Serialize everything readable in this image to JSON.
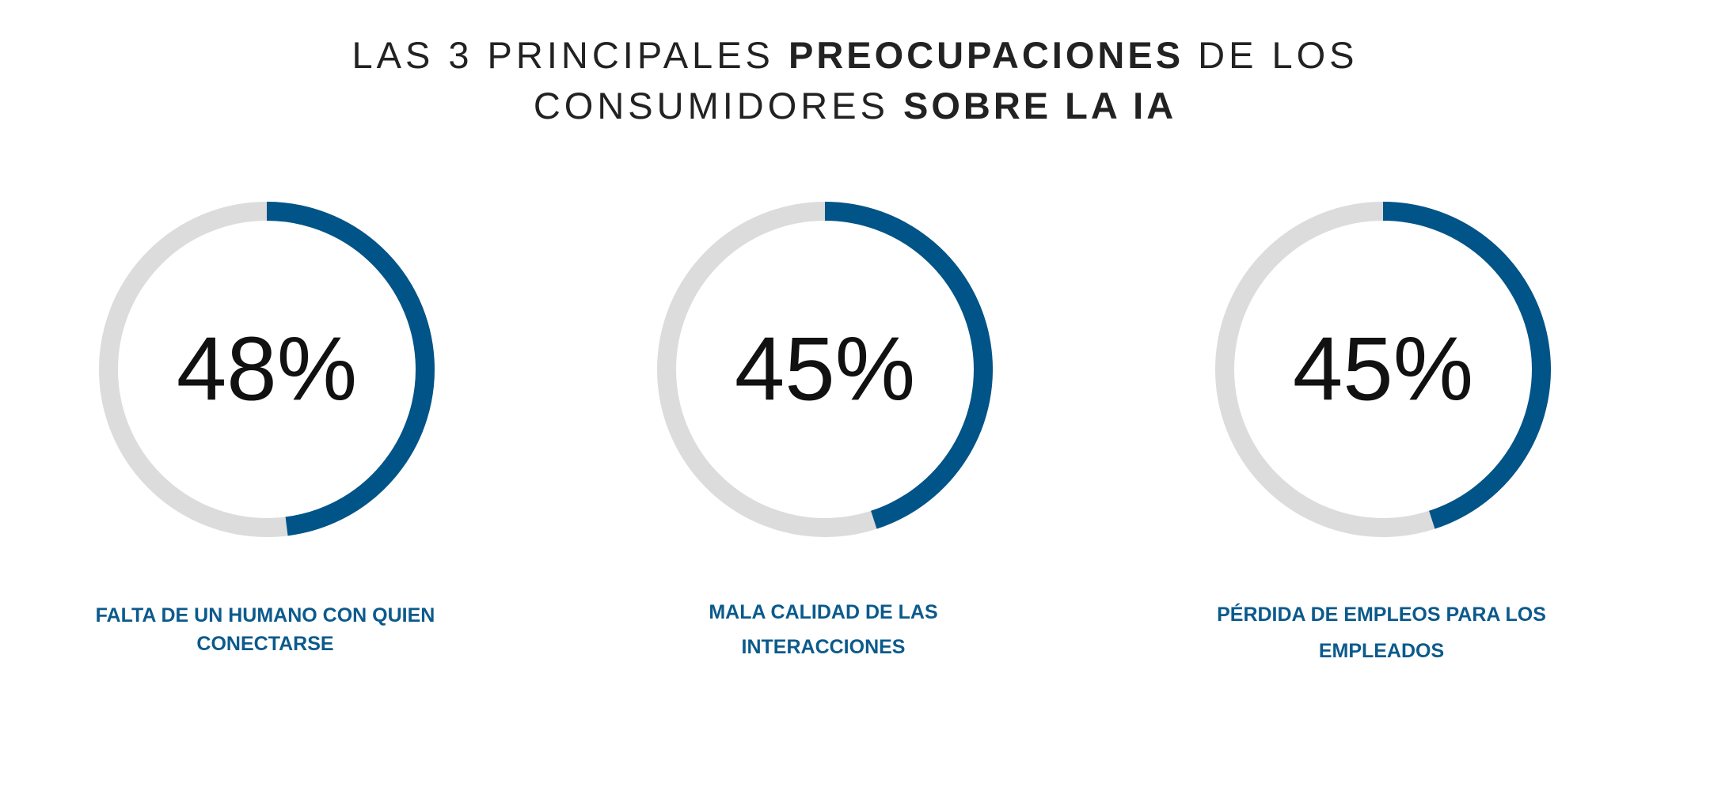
{
  "title": {
    "line1_pre": "LAS 3 PRINCIPALES ",
    "line1_bold": "PREOCUPACIONES",
    "line1_post": " DE LOS",
    "line2_pre": "CONSUMIDORES ",
    "line2_bold": "SOBRE LA IA"
  },
  "colors": {
    "accent": "#005488",
    "track": "#dcdcdc",
    "label": "#0b5a8c",
    "value_text": "#111111"
  },
  "chart_data": [
    {
      "type": "pie",
      "value": 48,
      "value_label": "48%",
      "category_lines": [
        "FALTA DE UN HUMANO CON QUIEN",
        "CONECTARSE"
      ]
    },
    {
      "type": "pie",
      "value": 45,
      "value_label": "45%",
      "category_lines": [
        "MALA CALIDAD DE LAS",
        "INTERACCIONES"
      ]
    },
    {
      "type": "pie",
      "value": 45,
      "value_label": "45%",
      "category_lines": [
        "PÉRDIDA DE EMPLEOS PARA LOS",
        "EMPLEADOS"
      ]
    }
  ]
}
